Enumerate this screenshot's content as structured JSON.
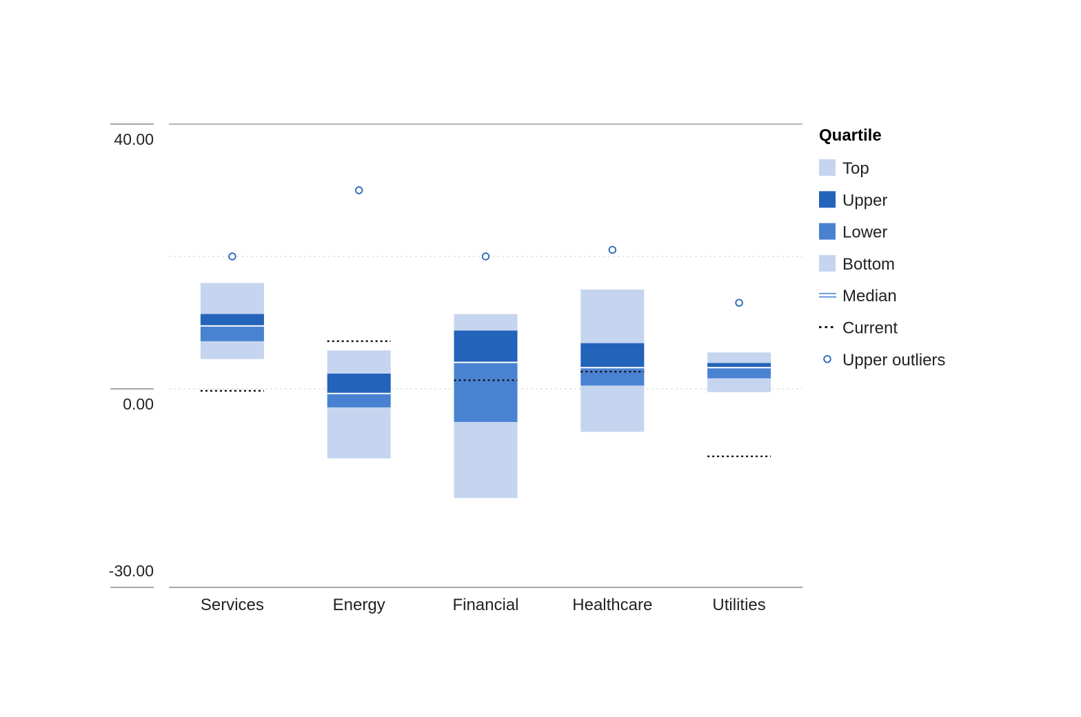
{
  "chart_data": {
    "type": "box",
    "ylim": [
      -30,
      40
    ],
    "ticks": [
      {
        "value": 40,
        "label": "40.00"
      },
      {
        "value": 0,
        "label": "0.00"
      },
      {
        "value": -30,
        "label": "-30.00"
      }
    ],
    "gridlines": [
      20,
      0
    ],
    "categories": [
      "Services",
      "Energy",
      "Financial",
      "Healthcare",
      "Utilities"
    ],
    "series": [
      {
        "category": "Services",
        "min": 4.5,
        "q1": 7.2,
        "median": 9.5,
        "q3": 11.3,
        "max": 16.0,
        "current": -0.3,
        "outlier": 20.0
      },
      {
        "category": "Energy",
        "min": -10.5,
        "q1": -2.8,
        "median": -0.7,
        "q3": 2.3,
        "max": 5.8,
        "current": 7.2,
        "outlier": 30.0
      },
      {
        "category": "Financial",
        "min": -16.5,
        "q1": -5.0,
        "median": 4.0,
        "q3": 8.8,
        "max": 11.3,
        "current": 1.3,
        "outlier": 20.0
      },
      {
        "category": "Healthcare",
        "min": -6.5,
        "q1": 0.5,
        "median": 3.2,
        "q3": 6.9,
        "max": 15.0,
        "current": 2.6,
        "outlier": 21.0
      },
      {
        "category": "Utilities",
        "min": -0.5,
        "q1": 1.6,
        "median": 3.2,
        "q3": 3.9,
        "max": 5.5,
        "current": -10.2,
        "outlier": 13.0
      }
    ],
    "legend": {
      "title": "Quartile",
      "position": "right",
      "items": [
        {
          "label": "Top",
          "kind": "swatch",
          "color": "#c5d5ef"
        },
        {
          "label": "Upper",
          "kind": "swatch",
          "color": "#2363b9"
        },
        {
          "label": "Lower",
          "kind": "swatch",
          "color": "#4a82d2"
        },
        {
          "label": "Bottom",
          "kind": "swatch",
          "color": "#c5d5ef"
        },
        {
          "label": "Median",
          "kind": "median",
          "color": "#4a82d2"
        },
        {
          "label": "Current",
          "kind": "current",
          "color": "#111111"
        },
        {
          "label": "Upper outliers",
          "kind": "outlier",
          "color": "#2363b9"
        }
      ]
    },
    "colors": {
      "top": "#c5d5ef",
      "upper": "#2363b9",
      "lower": "#4a82d2",
      "bottom": "#c5d5ef",
      "median": "#ffffff",
      "current": "#111111",
      "outlier": "#2363b9",
      "axis": "#888888",
      "grid": "#d9d9d9"
    }
  }
}
